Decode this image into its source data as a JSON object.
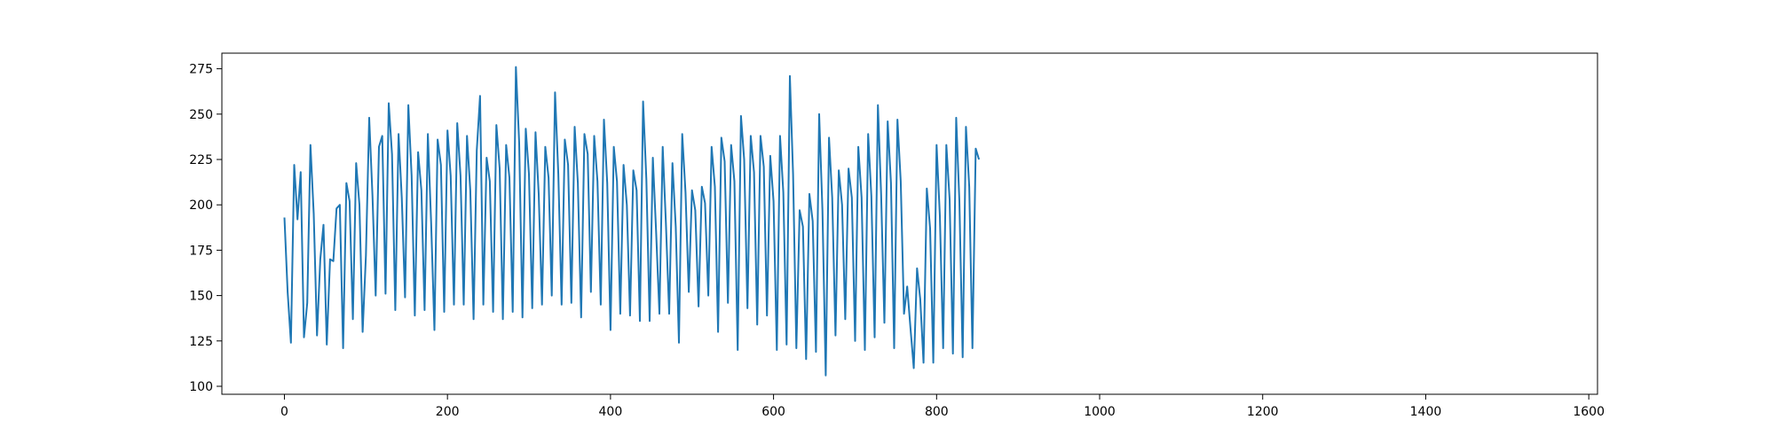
{
  "chart_data": {
    "type": "line",
    "title": "",
    "xlabel": "",
    "ylabel": "",
    "xlim": [
      -76.7,
      1610.7
    ],
    "ylim": [
      95.6,
      283.6
    ],
    "x_ticks": [
      0,
      200,
      400,
      600,
      800,
      1000,
      1200,
      1400,
      1600
    ],
    "y_ticks": [
      100,
      125,
      150,
      175,
      200,
      225,
      250,
      275
    ],
    "x_tick_labels": [
      "0",
      "200",
      "400",
      "600",
      "800",
      "1000",
      "1200",
      "1400",
      "1600"
    ],
    "y_tick_labels": [
      "100",
      "125",
      "150",
      "175",
      "200",
      "225",
      "250",
      "275"
    ],
    "grid": false,
    "legend": "none",
    "series": [
      {
        "color": "#1f77b4",
        "x_start": 0,
        "x_step": 4,
        "values": [
          193,
          152,
          124,
          222,
          192,
          218,
          127,
          146,
          233,
          195,
          128,
          170,
          189,
          123,
          170,
          169,
          198,
          200,
          121,
          212,
          202,
          137,
          223,
          200,
          130,
          172,
          248,
          205,
          150,
          232,
          238,
          151,
          256,
          228,
          142,
          239,
          204,
          149,
          255,
          216,
          139,
          229,
          208,
          142,
          239,
          190,
          131,
          236,
          222,
          141,
          241,
          216,
          145,
          245,
          216,
          145,
          238,
          208,
          137,
          230,
          260,
          145,
          226,
          213,
          141,
          244,
          220,
          137,
          233,
          215,
          141,
          276,
          234,
          138,
          242,
          217,
          143,
          240,
          206,
          145,
          232,
          215,
          150,
          262,
          217,
          145,
          236,
          222,
          146,
          243,
          212,
          138,
          239,
          228,
          152,
          238,
          213,
          145,
          247,
          212,
          131,
          232,
          213,
          140,
          222,
          200,
          139,
          219,
          208,
          136,
          257,
          214,
          136,
          226,
          185,
          140,
          232,
          190,
          140,
          223,
          188,
          124,
          239,
          207,
          152,
          208,
          197,
          144,
          210,
          201,
          150,
          232,
          210,
          130,
          237,
          224,
          146,
          233,
          213,
          120,
          249,
          225,
          143,
          238,
          218,
          134,
          238,
          221,
          139,
          227,
          202,
          120,
          238,
          207,
          123,
          271,
          217,
          121,
          197,
          188,
          115,
          206,
          191,
          119,
          250,
          197,
          106,
          237,
          204,
          128,
          219,
          200,
          137,
          220,
          204,
          125,
          232,
          204,
          120,
          239,
          205,
          127,
          255,
          206,
          135,
          246,
          212,
          121,
          247,
          213,
          140,
          155,
          132,
          110,
          165,
          148,
          113,
          209,
          187,
          113,
          233,
          194,
          121,
          233,
          203,
          118,
          248,
          202,
          116,
          243,
          210,
          121,
          231,
          225
        ]
      }
    ]
  }
}
